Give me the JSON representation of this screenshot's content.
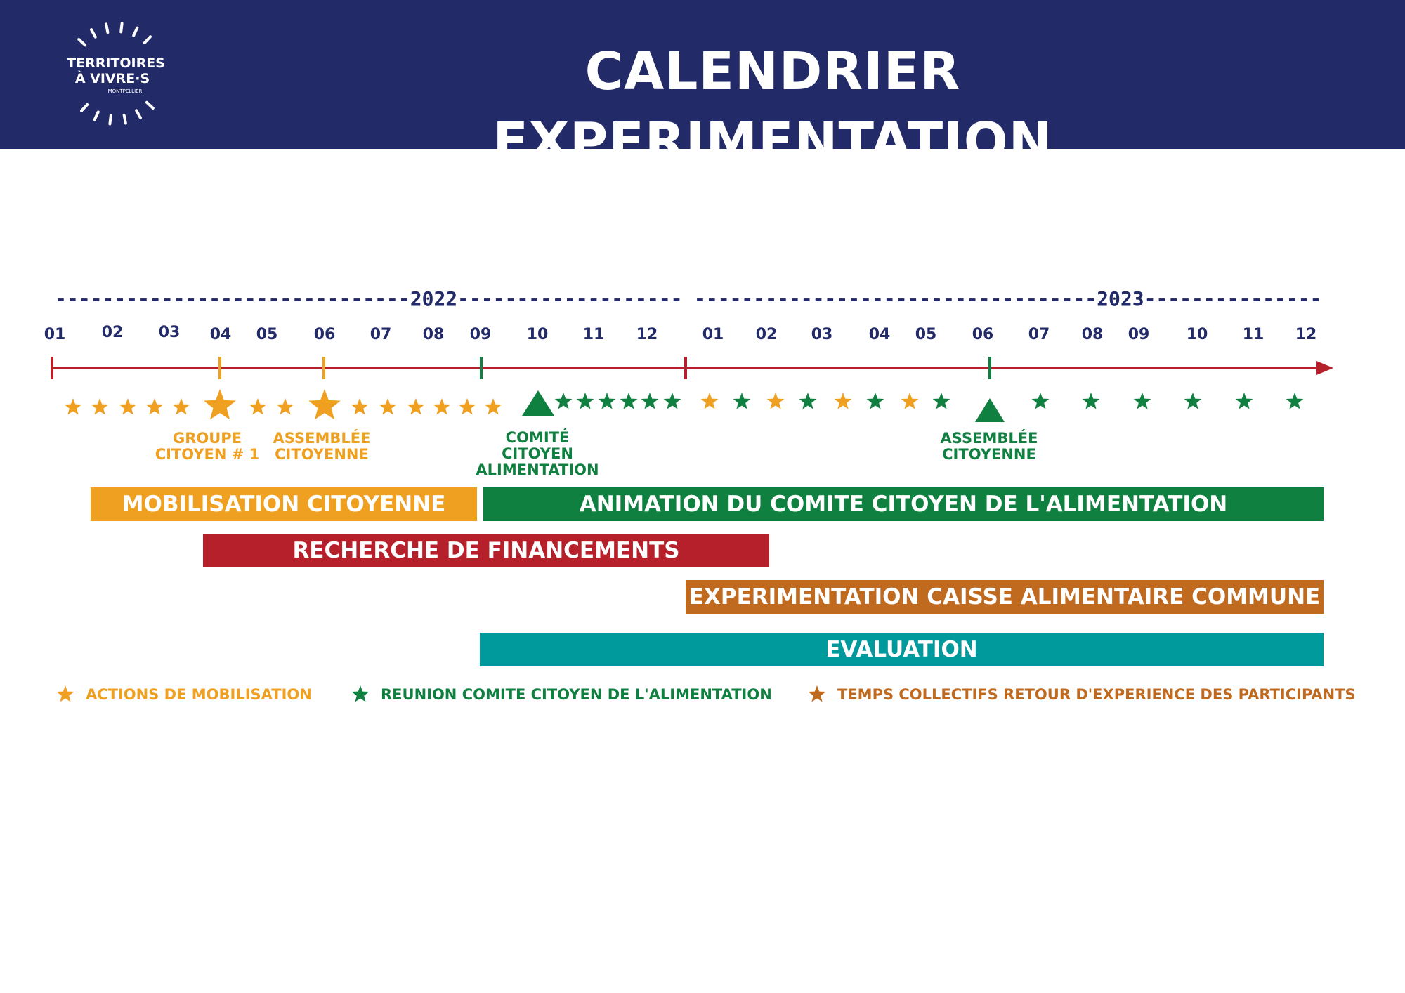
{
  "header": {
    "title": "CALENDRIER EXPERIMENTATION",
    "logo": {
      "line1": "TERRITOIRES",
      "line2": "À VIVRE·S",
      "line3": "MONTPELLIER"
    }
  },
  "colors": {
    "header_bg": "#222a68",
    "timeline": "#b5202a",
    "mobilisation": "#f0a020",
    "comite": "#0f8040",
    "retour": "#c06a20",
    "evaluation": "#00999c"
  },
  "timeline": {
    "years": [
      {
        "label": "------------------------------2022---------------------------------"
      },
      {
        "label": "----------------------------------2023------------------------------"
      }
    ],
    "months_2022": [
      "01",
      "02",
      "03",
      "04",
      "05",
      "06",
      "07",
      "08",
      "09",
      "10",
      "11",
      "12"
    ],
    "months_2023": [
      "01",
      "02",
      "03",
      "04",
      "05",
      "06",
      "07",
      "08",
      "09",
      "10",
      "11",
      "12"
    ]
  },
  "events": {
    "mobilisation_stars_2022": 14,
    "comite_stars_2022": 6,
    "stars_2023": [
      "orange",
      "green",
      "orange",
      "green",
      "orange",
      "green",
      "orange",
      "green",
      "green",
      "green",
      "green",
      "green",
      "green",
      "green"
    ]
  },
  "milestones": [
    {
      "id": "groupe-citoyen",
      "label": "GROUPE\nCITOYEN # 1",
      "color": "mobilisation",
      "marker": "star"
    },
    {
      "id": "assemblee-citoyenne-2022",
      "label": "ASSEMBLÉE\nCITOYENNE",
      "color": "mobilisation",
      "marker": "star"
    },
    {
      "id": "comite-citoyen-alimentation",
      "label": "COMITÉ\nCITOYEN\nALIMENTATION",
      "color": "comite",
      "marker": "triangle"
    },
    {
      "id": "assemblee-citoyenne-2023",
      "label": "ASSEMBLÉE\nCITOYENNE",
      "color": "comite",
      "marker": "triangle"
    }
  ],
  "phases": [
    {
      "id": "mobilisation-citoyenne",
      "label": "MOBILISATION CITOYENNE",
      "color": "mobilisation"
    },
    {
      "id": "animation-comite",
      "label": "ANIMATION DU COMITE CITOYEN DE L'ALIMENTATION",
      "color": "comite"
    },
    {
      "id": "recherche-financements",
      "label": "RECHERCHE DE FINANCEMENTS",
      "color": "timeline"
    },
    {
      "id": "experimentation-caisse",
      "label": "EXPERIMENTATION CAISSE ALIMENTAIRE COMMUNE",
      "color": "retour"
    },
    {
      "id": "evaluation",
      "label": "EVALUATION",
      "color": "evaluation"
    }
  ],
  "legend": [
    {
      "id": "actions-mobilisation",
      "label": "ACTIONS DE MOBILISATION",
      "color": "mobilisation"
    },
    {
      "id": "reunion-comite",
      "label": "REUNION COMITE CITOYEN DE L'ALIMENTATION",
      "color": "comite"
    },
    {
      "id": "temps-collectifs",
      "label": "TEMPS COLLECTIFS RETOUR D'EXPERIENCE DES PARTICIPANTS",
      "color": "retour"
    }
  ]
}
